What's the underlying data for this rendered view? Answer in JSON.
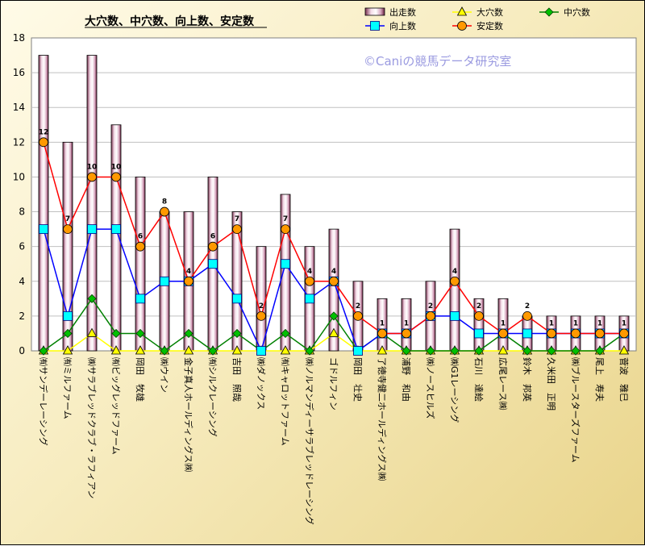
{
  "chart_data": {
    "type": "bar",
    "title": "大穴数、中穴数、向上数、安定数",
    "watermark": "©Caniの競馬データ研究室",
    "ylim": [
      0,
      18
    ],
    "yticks": [
      0,
      2,
      4,
      6,
      8,
      10,
      12,
      14,
      16,
      18
    ],
    "categories": [
      "㈲サンデーレーシング",
      "㈲ミルファーム",
      "㈱サラブレッドクラブ・ラフィアン",
      "㈲ビッグレッドファーム",
      "岡田　牧雄",
      "㈱ウイン",
      "金子真人ホールディングス㈱",
      "㈲シルクレーシング",
      "吉田　照哉",
      "㈱ダノックス",
      "㈲キャロットファーム",
      "㈱ノルマンディーサラブレッドレーシング",
      "ゴドルフィン",
      "岡田　壮史",
      "了徳寺健二ホールディングス㈱",
      "浦野　和由",
      "㈱ノースヒルズ",
      "㈱G1レーシング",
      "石川　達絵",
      "広尾レース㈱",
      "鈴木　邦英",
      "久米田　正明",
      "㈱ブルースターズファーム",
      "尾上　寿夫",
      "菅波　雅巳"
    ],
    "series": [
      {
        "name": "出走数",
        "kind": "bar",
        "color": "#c090a8",
        "values": [
          17,
          12,
          17,
          13,
          10,
          8,
          8,
          10,
          8,
          6,
          9,
          6,
          7,
          4,
          3,
          3,
          4,
          7,
          3,
          3,
          2,
          2,
          2,
          2,
          2
        ]
      },
      {
        "name": "大穴数",
        "kind": "line",
        "color": "#ffff00",
        "marker": "triangle",
        "values": [
          0,
          0,
          1,
          0,
          0,
          0,
          0,
          0,
          0,
          0,
          0,
          0,
          1,
          0,
          0,
          0,
          0,
          0,
          0,
          0,
          0,
          0,
          0,
          0,
          0
        ]
      },
      {
        "name": "中穴数",
        "kind": "line",
        "color": "#008000",
        "marker": "diamond",
        "values": [
          0,
          1,
          3,
          1,
          1,
          0,
          1,
          0,
          1,
          0,
          1,
          0,
          2,
          0,
          1,
          0,
          0,
          0,
          0,
          1,
          0,
          0,
          0,
          0,
          1
        ]
      },
      {
        "name": "向上数",
        "kind": "line",
        "color": "#0000ff",
        "marker": "square",
        "values": [
          7,
          2,
          7,
          7,
          3,
          4,
          4,
          5,
          3,
          0,
          5,
          3,
          4,
          0,
          1,
          1,
          2,
          2,
          1,
          1,
          1,
          1,
          1,
          1,
          1
        ]
      },
      {
        "name": "安定数",
        "kind": "line",
        "color": "#ff0000",
        "marker": "circle",
        "values": [
          12,
          7,
          10,
          10,
          6,
          8,
          4,
          6,
          7,
          2,
          7,
          4,
          4,
          2,
          1,
          1,
          2,
          4,
          2,
          1,
          2,
          1,
          1,
          1,
          1
        ]
      }
    ],
    "legend_position": "top-right",
    "grid": true
  }
}
